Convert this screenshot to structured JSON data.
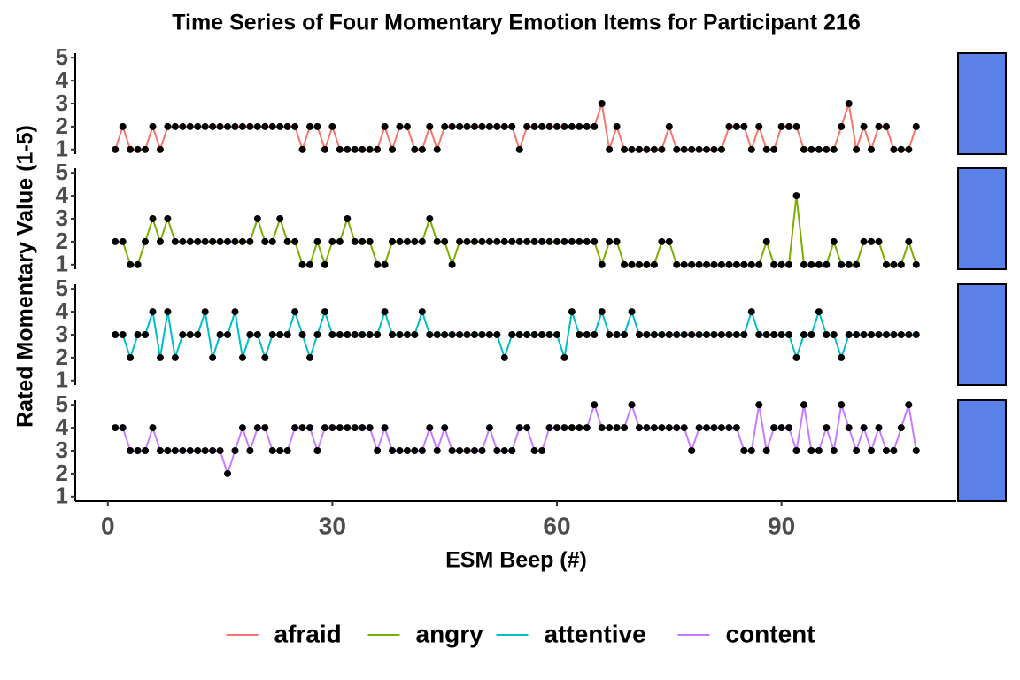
{
  "chart_data": {
    "type": "line",
    "title": "Time Series of Four Momentary Emotion Items for Participant 216",
    "x_label": "ESM Beep (#)",
    "y_label": "Rated Momentary Value (1-5)",
    "xlim": [
      -4.35,
      113.35
    ],
    "xticks": [
      0,
      30,
      60,
      90
    ],
    "ylim": [
      0.8,
      5.2
    ],
    "yticks": [
      1,
      2,
      3,
      4,
      5
    ],
    "facets": true,
    "legend": "bottom",
    "point_color": "#000000",
    "x": [
      1,
      2,
      3,
      4,
      5,
      6,
      7,
      8,
      9,
      10,
      11,
      12,
      13,
      14,
      15,
      16,
      17,
      18,
      19,
      20,
      21,
      22,
      23,
      24,
      25,
      26,
      27,
      28,
      29,
      30,
      31,
      32,
      33,
      34,
      35,
      36,
      37,
      38,
      39,
      40,
      41,
      42,
      43,
      44,
      45,
      46,
      47,
      48,
      49,
      50,
      51,
      52,
      53,
      54,
      55,
      56,
      57,
      58,
      59,
      60,
      61,
      62,
      63,
      64,
      65,
      66,
      67,
      68,
      69,
      70,
      71,
      72,
      73,
      74,
      75,
      76,
      77,
      78,
      79,
      80,
      81,
      82,
      83,
      84,
      85,
      86,
      87,
      88,
      89,
      90,
      91,
      92,
      93,
      94,
      95,
      96,
      97,
      98,
      99,
      100,
      101,
      102,
      103,
      104,
      105,
      106,
      107,
      108
    ],
    "series": [
      {
        "name": "afraid",
        "color": "#F8766D",
        "values": [
          1,
          2,
          1,
          1,
          1,
          2,
          1,
          2,
          2,
          2,
          2,
          2,
          2,
          2,
          2,
          2,
          2,
          2,
          2,
          2,
          2,
          2,
          2,
          2,
          2,
          1,
          2,
          2,
          1,
          2,
          1,
          1,
          1,
          1,
          1,
          1,
          2,
          1,
          2,
          2,
          1,
          1,
          2,
          1,
          2,
          2,
          2,
          2,
          2,
          2,
          2,
          2,
          2,
          2,
          1,
          2,
          2,
          2,
          2,
          2,
          2,
          2,
          2,
          2,
          2,
          3,
          1,
          2,
          1,
          1,
          1,
          1,
          1,
          1,
          2,
          1,
          1,
          1,
          1,
          1,
          1,
          1,
          2,
          2,
          2,
          1,
          2,
          1,
          1,
          2,
          2,
          2,
          1,
          1,
          1,
          1,
          1,
          2,
          3,
          1,
          2,
          1,
          2,
          2,
          1,
          1,
          1,
          2
        ]
      },
      {
        "name": "angry",
        "color": "#7CAE00",
        "values": [
          2,
          2,
          1,
          1,
          2,
          3,
          2,
          3,
          2,
          2,
          2,
          2,
          2,
          2,
          2,
          2,
          2,
          2,
          2,
          3,
          2,
          2,
          3,
          2,
          2,
          1,
          1,
          2,
          1,
          2,
          2,
          3,
          2,
          2,
          2,
          1,
          1,
          2,
          2,
          2,
          2,
          2,
          3,
          2,
          2,
          1,
          2,
          2,
          2,
          2,
          2,
          2,
          2,
          2,
          2,
          2,
          2,
          2,
          2,
          2,
          2,
          2,
          2,
          2,
          2,
          1,
          2,
          2,
          1,
          1,
          1,
          1,
          1,
          2,
          2,
          1,
          1,
          1,
          1,
          1,
          1,
          1,
          1,
          1,
          1,
          1,
          1,
          2,
          1,
          1,
          1,
          4,
          1,
          1,
          1,
          1,
          2,
          1,
          1,
          1,
          2,
          2,
          2,
          1,
          1,
          1,
          2,
          1
        ]
      },
      {
        "name": "attentive",
        "color": "#00BFC4",
        "values": [
          3,
          3,
          2,
          3,
          3,
          4,
          2,
          4,
          2,
          3,
          3,
          3,
          4,
          2,
          3,
          3,
          4,
          2,
          3,
          3,
          2,
          3,
          3,
          3,
          4,
          3,
          2,
          3,
          4,
          3,
          3,
          3,
          3,
          3,
          3,
          3,
          4,
          3,
          3,
          3,
          3,
          4,
          3,
          3,
          3,
          3,
          3,
          3,
          3,
          3,
          3,
          3,
          2,
          3,
          3,
          3,
          3,
          3,
          3,
          3,
          2,
          4,
          3,
          3,
          3,
          4,
          3,
          3,
          3,
          4,
          3,
          3,
          3,
          3,
          3,
          3,
          3,
          3,
          3,
          3,
          3,
          3,
          3,
          3,
          3,
          4,
          3,
          3,
          3,
          3,
          3,
          2,
          3,
          3,
          4,
          3,
          3,
          2,
          3,
          3,
          3,
          3,
          3,
          3,
          3,
          3,
          3,
          3
        ]
      },
      {
        "name": "content",
        "color": "#C77CFF",
        "values": [
          4,
          4,
          3,
          3,
          3,
          4,
          3,
          3,
          3,
          3,
          3,
          3,
          3,
          3,
          3,
          2,
          3,
          4,
          3,
          4,
          4,
          3,
          3,
          3,
          4,
          4,
          4,
          3,
          4,
          4,
          4,
          4,
          4,
          4,
          4,
          3,
          4,
          3,
          3,
          3,
          3,
          3,
          4,
          3,
          4,
          3,
          3,
          3,
          3,
          3,
          4,
          3,
          3,
          3,
          4,
          4,
          3,
          3,
          4,
          4,
          4,
          4,
          4,
          4,
          5,
          4,
          4,
          4,
          4,
          5,
          4,
          4,
          4,
          4,
          4,
          4,
          4,
          3,
          4,
          4,
          4,
          4,
          4,
          4,
          3,
          3,
          5,
          3,
          4,
          4,
          4,
          3,
          5,
          3,
          3,
          4,
          3,
          5,
          4,
          3,
          4,
          3,
          4,
          3,
          3,
          4,
          5,
          3
        ]
      }
    ]
  }
}
